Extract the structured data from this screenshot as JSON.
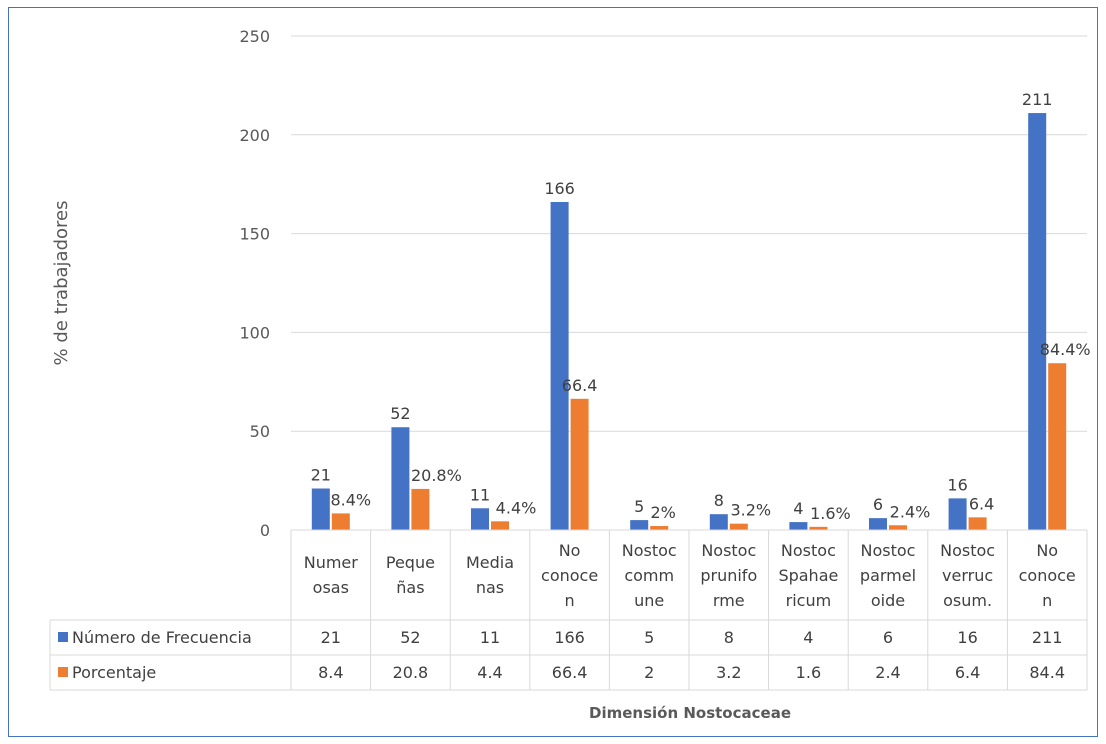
{
  "chart_data": {
    "type": "bar",
    "ylabel": "% de trabajadores",
    "xlabel": "Dimensión Nostocaceae",
    "ylim": [
      0,
      250
    ],
    "yticks": [
      "0",
      "50",
      "100",
      "150",
      "200",
      "250"
    ],
    "grid": true,
    "legend": "data-table",
    "categories": [
      [
        "Numer",
        "osas"
      ],
      [
        "Peque",
        "ñas"
      ],
      [
        "Media",
        "nas"
      ],
      [
        "No",
        "conoce",
        "n"
      ],
      [
        "Nostoc",
        "comm",
        "une"
      ],
      [
        "Nostoc",
        "prunifo",
        "rme"
      ],
      [
        "Nostoc",
        "Spahae",
        "ricum"
      ],
      [
        "Nostoc",
        "parmel",
        "oide"
      ],
      [
        "Nostoc",
        "verruc",
        "osum."
      ],
      [
        "No",
        "conoce",
        "n"
      ]
    ],
    "series": [
      {
        "name": "Número de Frecuencia",
        "color": "#4472C4",
        "values": [
          21,
          52,
          11,
          166,
          5,
          8,
          4,
          6,
          16,
          211
        ],
        "labels": [
          "21",
          "52",
          "11",
          "166",
          "5",
          "8",
          "4",
          "6",
          "16",
          "211"
        ],
        "table": [
          "21",
          "52",
          "11",
          "166",
          "5",
          "8",
          "4",
          "6",
          "16",
          "211"
        ]
      },
      {
        "name": "Porcentaje",
        "color": "#ED7D31",
        "values": [
          8.4,
          20.8,
          4.4,
          66.4,
          2,
          3.2,
          1.6,
          2.4,
          6.4,
          84.4
        ],
        "labels": [
          "8.4%",
          "20.8%",
          "4.4%",
          "66.4",
          "2%",
          "3.2%",
          "1.6%",
          "2.4%",
          "6.4",
          "84.4%"
        ],
        "table": [
          "8.4",
          "20.8",
          "4.4",
          "66.4",
          "2",
          "3.2",
          "1.6",
          "2.4",
          "6.4",
          "84.4"
        ]
      }
    ]
  }
}
